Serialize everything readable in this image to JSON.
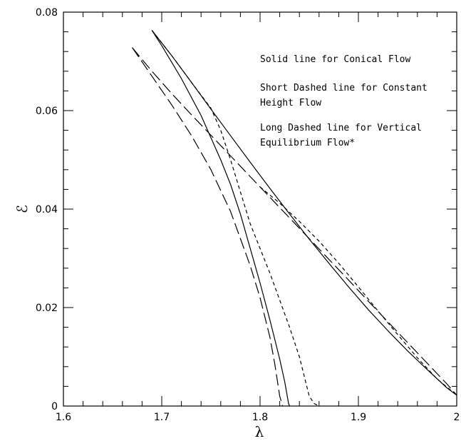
{
  "chart_data": {
    "type": "line",
    "title": "",
    "xlabel": "λ",
    "ylabel": "ℰ",
    "xlim": [
      1.6,
      2.0
    ],
    "ylim": [
      0,
      0.08
    ],
    "grid": false,
    "x_tick_labels": [
      "1.6",
      "1.7",
      "1.8",
      "1.9",
      "2"
    ],
    "y_tick_labels": [
      "0",
      "0.02",
      "0.04",
      "0.06",
      "0.08"
    ],
    "annotations": [
      "Solid line for Conical Flow",
      "Short Dashed line for Constant",
      "Height Flow",
      "Long Dashed line for Vertical",
      "Equilibrium Flow*"
    ],
    "series": [
      {
        "style": "solid",
        "points": [
          [
            1.69,
            0.0763
          ],
          [
            1.71,
            0.0712
          ],
          [
            1.73,
            0.0658
          ],
          [
            1.75,
            0.0603
          ],
          [
            1.77,
            0.0549
          ],
          [
            1.79,
            0.0495
          ],
          [
            1.81,
            0.0442
          ],
          [
            1.83,
            0.039
          ],
          [
            1.85,
            0.0339
          ],
          [
            1.87,
            0.029
          ],
          [
            1.89,
            0.0242
          ],
          [
            1.91,
            0.0196
          ],
          [
            1.93,
            0.0153
          ],
          [
            1.95,
            0.0112
          ],
          [
            1.97,
            0.0074
          ],
          [
            1.99,
            0.0037
          ],
          [
            2.0,
            0.0022
          ]
        ]
      },
      {
        "style": "solid",
        "points": [
          [
            1.69,
            0.0763
          ],
          [
            1.7,
            0.0732
          ],
          [
            1.72,
            0.0665
          ],
          [
            1.74,
            0.059
          ],
          [
            1.76,
            0.05
          ],
          [
            1.77,
            0.045
          ],
          [
            1.78,
            0.039
          ],
          [
            1.79,
            0.032
          ],
          [
            1.8,
            0.025
          ],
          [
            1.81,
            0.0175
          ],
          [
            1.82,
            0.0095
          ],
          [
            1.825,
            0.005
          ],
          [
            1.829,
            0.0005
          ],
          [
            1.83,
            0.0
          ]
        ]
      },
      {
        "style": "short-dashed",
        "points": [
          [
            1.69,
            0.0763
          ],
          [
            1.71,
            0.0712
          ],
          [
            1.73,
            0.0658
          ],
          [
            1.75,
            0.0605
          ],
          [
            1.76,
            0.056
          ],
          [
            1.77,
            0.05
          ],
          [
            1.78,
            0.0435
          ],
          [
            1.79,
            0.037
          ],
          [
            1.8,
            0.032
          ],
          [
            1.81,
            0.027
          ],
          [
            1.82,
            0.0215
          ],
          [
            1.83,
            0.016
          ],
          [
            1.84,
            0.01
          ],
          [
            1.845,
            0.006
          ],
          [
            1.85,
            0.002
          ],
          [
            1.855,
            0.0005
          ],
          [
            1.86,
            0.0
          ]
        ]
      },
      {
        "style": "short-dashed",
        "points": [
          [
            1.8,
            0.0445
          ],
          [
            1.82,
            0.0412
          ],
          [
            1.84,
            0.0375
          ],
          [
            1.86,
            0.0335
          ],
          [
            1.88,
            0.029
          ],
          [
            1.9,
            0.0242
          ],
          [
            1.92,
            0.0193
          ],
          [
            1.94,
            0.0145
          ],
          [
            1.96,
            0.0098
          ],
          [
            1.98,
            0.0055
          ],
          [
            2.0,
            0.0022
          ]
        ]
      },
      {
        "style": "long-dashed",
        "points": [
          [
            1.67,
            0.0728
          ],
          [
            1.69,
            0.068
          ],
          [
            1.71,
            0.0635
          ],
          [
            1.73,
            0.0592
          ],
          [
            1.75,
            0.055
          ],
          [
            1.77,
            0.0508
          ],
          [
            1.79,
            0.0466
          ],
          [
            1.81,
            0.0424
          ],
          [
            1.83,
            0.0382
          ],
          [
            1.85,
            0.034
          ],
          [
            1.87,
            0.0298
          ],
          [
            1.89,
            0.0256
          ],
          [
            1.91,
            0.0213
          ],
          [
            1.93,
            0.0171
          ],
          [
            1.95,
            0.0129
          ],
          [
            1.97,
            0.0087
          ],
          [
            1.99,
            0.0045
          ],
          [
            2.0,
            0.0022
          ]
        ]
      },
      {
        "style": "long-dashed",
        "points": [
          [
            1.67,
            0.0728
          ],
          [
            1.69,
            0.067
          ],
          [
            1.71,
            0.0612
          ],
          [
            1.73,
            0.055
          ],
          [
            1.75,
            0.048
          ],
          [
            1.77,
            0.0395
          ],
          [
            1.79,
            0.0285
          ],
          [
            1.8,
            0.022
          ],
          [
            1.81,
            0.014
          ],
          [
            1.815,
            0.0085
          ],
          [
            1.82,
            0.002
          ],
          [
            1.823,
            0.0
          ]
        ]
      }
    ]
  }
}
